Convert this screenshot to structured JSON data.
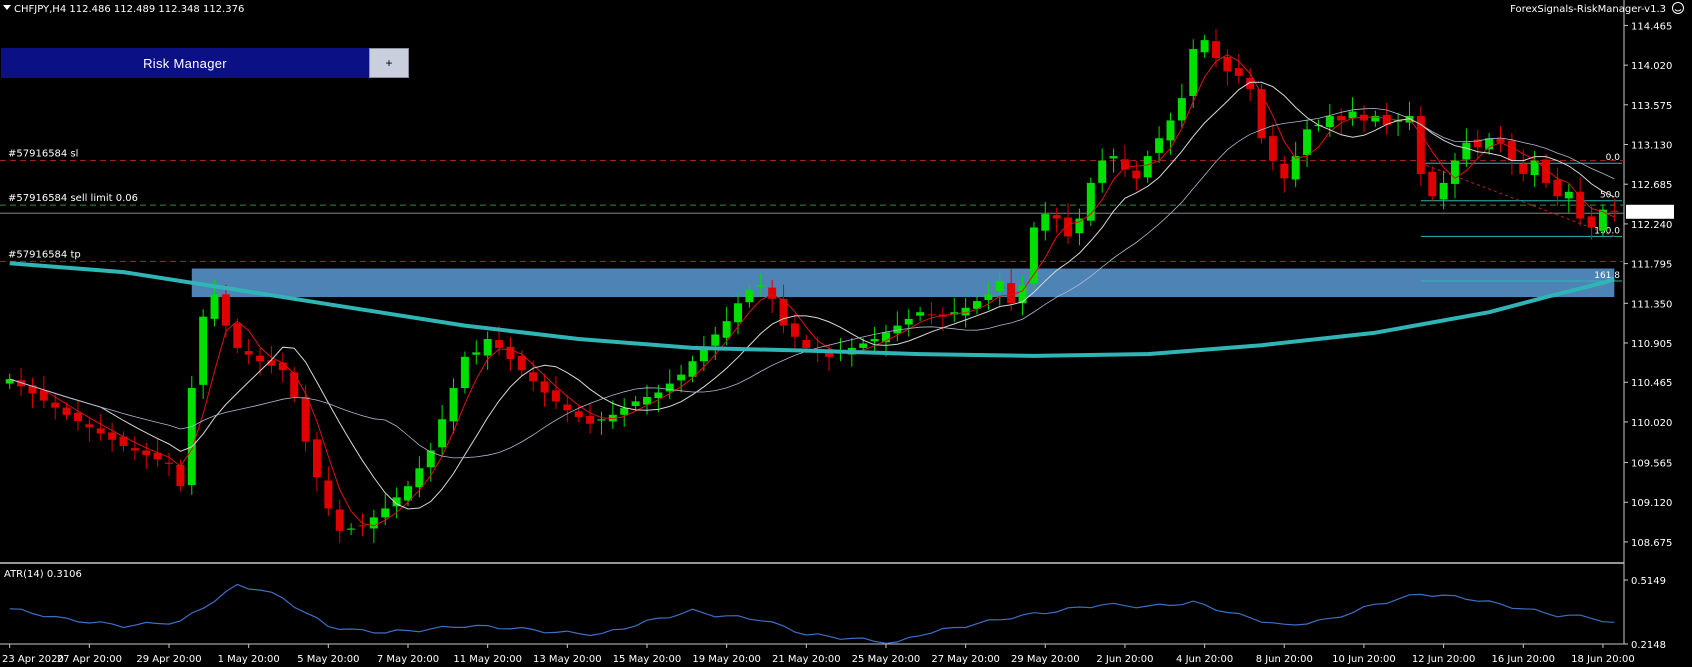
{
  "header": {
    "symbol_info": "CHFJPY,H4  112.486 112.489 112.348 112.376",
    "expert_name": "ForexSignals-RiskManager-v1.3"
  },
  "risk_manager": {
    "title": "Risk Manager",
    "plus_label": "+"
  },
  "order_lines": {
    "sl_label": "#57916584 sl",
    "entry_label": "#57916584 sell limit 0.06",
    "tp_label": "#57916584 tp"
  },
  "fib_levels": [
    "0.0",
    "50.0",
    "100.0",
    "161.8"
  ],
  "current_price": "112.376",
  "atr_label": "ATR(14) 0.3106",
  "colors": {
    "bull": "#00e000",
    "bear": "#e00000",
    "ma_fast": "#e01010",
    "ma_mid": "#d8d8d8",
    "ma_long": "#b0b8d0",
    "ma_200": "#2fb5b5",
    "zone": "#5b9bd5",
    "atr_line": "#3d6fc4",
    "order_sl": "#b22222",
    "order_entry": "#3a8a3a",
    "fib": "#2fb5b5"
  },
  "chart_data": {
    "type": "candlestick",
    "symbol": "CHFJPY",
    "timeframe": "H4",
    "ohlc": {
      "open": 112.486,
      "high": 112.489,
      "low": 112.348,
      "close": 112.376
    },
    "ylim": [
      108.45,
      114.75
    ],
    "y_ticks": [
      "114.465",
      "114.020",
      "113.575",
      "113.130",
      "112.685",
      "112.240",
      "111.795",
      "111.350",
      "110.905",
      "110.465",
      "110.020",
      "109.565",
      "109.120",
      "108.675"
    ],
    "x_ticks": [
      "23 Apr 2020",
      "27 Apr 20:00",
      "29 Apr 20:00",
      "1 May 20:00",
      "5 May 20:00",
      "7 May 20:00",
      "11 May 20:00",
      "13 May 20:00",
      "15 May 20:00",
      "19 May 20:00",
      "21 May 20:00",
      "25 May 20:00",
      "27 May 20:00",
      "29 May 20:00",
      "2 Jun 20:00",
      "4 Jun 20:00",
      "8 Jun 20:00",
      "10 Jun 20:00",
      "12 Jun 20:00",
      "16 Jun 20:00",
      "18 Jun 20:00"
    ],
    "close_path": [
      [
        0,
        110.5
      ],
      [
        5,
        110.1
      ],
      [
        10,
        109.75
      ],
      [
        14,
        109.55
      ],
      [
        15,
        109.3
      ],
      [
        16,
        110.4
      ],
      [
        17,
        111.2
      ],
      [
        18,
        111.45
      ],
      [
        19,
        111.1
      ],
      [
        20,
        110.85
      ],
      [
        22,
        110.7
      ],
      [
        24,
        110.6
      ],
      [
        25,
        110.3
      ],
      [
        26,
        109.8
      ],
      [
        27,
        109.4
      ],
      [
        28,
        109.05
      ],
      [
        29,
        108.8
      ],
      [
        31,
        108.85
      ],
      [
        33,
        109.05
      ],
      [
        35,
        109.3
      ],
      [
        37,
        109.7
      ],
      [
        38,
        110.05
      ],
      [
        39,
        110.4
      ],
      [
        40,
        110.75
      ],
      [
        41,
        110.8
      ],
      [
        42,
        110.95
      ],
      [
        43,
        110.85
      ],
      [
        45,
        110.6
      ],
      [
        47,
        110.35
      ],
      [
        49,
        110.15
      ],
      [
        51,
        110.0
      ],
      [
        53,
        110.1
      ],
      [
        55,
        110.25
      ],
      [
        57,
        110.35
      ],
      [
        59,
        110.55
      ],
      [
        61,
        110.85
      ],
      [
        63,
        111.15
      ],
      [
        64,
        111.35
      ],
      [
        65,
        111.5
      ],
      [
        66,
        111.55
      ],
      [
        67,
        111.4
      ],
      [
        68,
        111.1
      ],
      [
        70,
        110.85
      ],
      [
        72,
        110.75
      ],
      [
        74,
        110.85
      ],
      [
        76,
        110.95
      ],
      [
        78,
        111.1
      ],
      [
        80,
        111.25
      ],
      [
        82,
        111.2
      ],
      [
        84,
        111.3
      ],
      [
        86,
        111.45
      ],
      [
        87,
        111.6
      ],
      [
        88,
        111.35
      ],
      [
        89,
        111.55
      ],
      [
        90,
        112.2
      ],
      [
        91,
        112.35
      ],
      [
        92,
        112.3
      ],
      [
        93,
        112.1
      ],
      [
        94,
        112.3
      ],
      [
        95,
        112.7
      ],
      [
        96,
        112.95
      ],
      [
        97,
        113.0
      ],
      [
        98,
        112.85
      ],
      [
        99,
        112.75
      ],
      [
        100,
        113.0
      ],
      [
        101,
        113.2
      ],
      [
        102,
        113.4
      ],
      [
        103,
        113.65
      ],
      [
        104,
        114.2
      ],
      [
        105,
        114.3
      ],
      [
        106,
        114.1
      ],
      [
        107,
        113.95
      ],
      [
        108,
        113.9
      ],
      [
        109,
        113.75
      ],
      [
        110,
        113.2
      ],
      [
        111,
        112.95
      ],
      [
        112,
        112.75
      ],
      [
        113,
        113.0
      ],
      [
        114,
        113.3
      ],
      [
        115,
        113.35
      ],
      [
        116,
        113.45
      ],
      [
        117,
        113.4
      ],
      [
        118,
        113.5
      ],
      [
        119,
        113.4
      ],
      [
        120,
        113.45
      ],
      [
        121,
        113.35
      ],
      [
        122,
        113.4
      ],
      [
        123,
        113.45
      ],
      [
        124,
        112.8
      ],
      [
        125,
        112.55
      ],
      [
        126,
        112.7
      ],
      [
        127,
        112.95
      ],
      [
        128,
        113.15
      ],
      [
        129,
        113.1
      ],
      [
        130,
        113.2
      ],
      [
        131,
        113.15
      ],
      [
        132,
        112.95
      ],
      [
        133,
        112.8
      ],
      [
        134,
        112.95
      ],
      [
        135,
        112.7
      ],
      [
        136,
        112.55
      ],
      [
        137,
        112.6
      ],
      [
        138,
        112.3
      ],
      [
        139,
        112.2
      ],
      [
        140,
        112.4
      ],
      [
        141,
        112.376
      ]
    ],
    "ma_200_path": [
      [
        0,
        111.8
      ],
      [
        10,
        111.7
      ],
      [
        20,
        111.5
      ],
      [
        30,
        111.3
      ],
      [
        40,
        111.1
      ],
      [
        50,
        110.95
      ],
      [
        60,
        110.85
      ],
      [
        70,
        110.82
      ],
      [
        80,
        110.78
      ],
      [
        90,
        110.76
      ],
      [
        100,
        110.78
      ],
      [
        110,
        110.88
      ],
      [
        120,
        111.02
      ],
      [
        130,
        111.25
      ],
      [
        135,
        111.42
      ],
      [
        140,
        111.58
      ],
      [
        141,
        111.62
      ]
    ],
    "atr_path": [
      [
        0,
        0.38
      ],
      [
        5,
        0.33
      ],
      [
        10,
        0.3
      ],
      [
        15,
        0.32
      ],
      [
        18,
        0.42
      ],
      [
        20,
        0.49
      ],
      [
        22,
        0.47
      ],
      [
        24,
        0.43
      ],
      [
        26,
        0.36
      ],
      [
        28,
        0.3
      ],
      [
        30,
        0.28
      ],
      [
        33,
        0.27
      ],
      [
        36,
        0.28
      ],
      [
        40,
        0.3
      ],
      [
        44,
        0.29
      ],
      [
        48,
        0.27
      ],
      [
        52,
        0.26
      ],
      [
        56,
        0.32
      ],
      [
        60,
        0.37
      ],
      [
        62,
        0.35
      ],
      [
        66,
        0.33
      ],
      [
        70,
        0.26
      ],
      [
        74,
        0.24
      ],
      [
        78,
        0.22
      ],
      [
        80,
        0.26
      ],
      [
        84,
        0.3
      ],
      [
        88,
        0.34
      ],
      [
        92,
        0.37
      ],
      [
        96,
        0.4
      ],
      [
        100,
        0.39
      ],
      [
        104,
        0.41
      ],
      [
        108,
        0.35
      ],
      [
        112,
        0.3
      ],
      [
        116,
        0.33
      ],
      [
        120,
        0.4
      ],
      [
        124,
        0.45
      ],
      [
        128,
        0.43
      ],
      [
        132,
        0.39
      ],
      [
        136,
        0.35
      ],
      [
        139,
        0.34
      ],
      [
        141,
        0.31
      ]
    ],
    "atr_ylim": [
      0.2148,
      0.5149
    ],
    "atr_ticks": [
      "0.5149",
      "0.2148"
    ],
    "order_levels": {
      "sl": 112.95,
      "entry": 112.45,
      "tp": 111.82
    },
    "fib_prices": [
      112.92,
      112.5,
      112.1,
      111.6
    ],
    "zone": {
      "from_bar": 16,
      "to_bar": 141,
      "top": 111.74,
      "bottom": 111.42
    }
  }
}
